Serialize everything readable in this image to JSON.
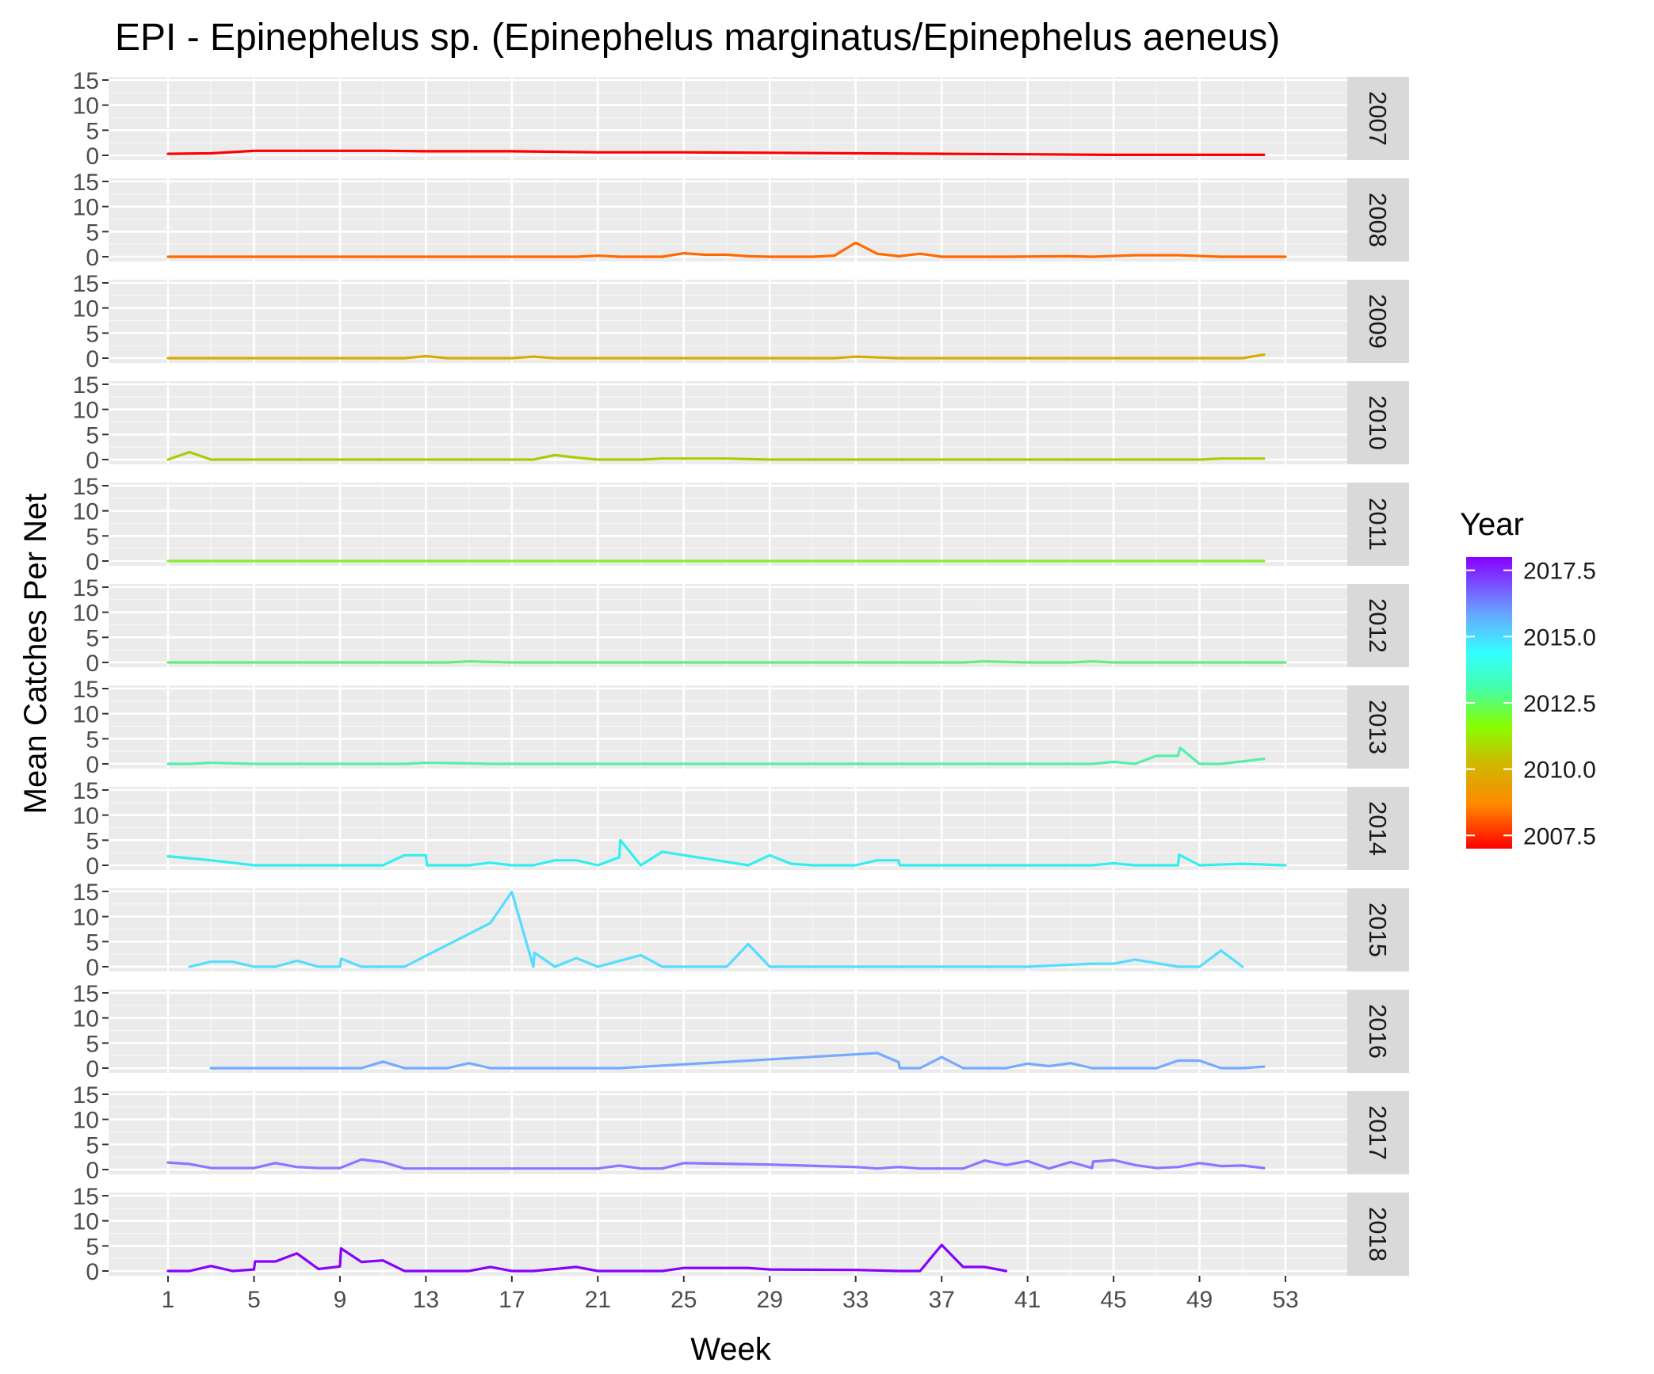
{
  "chart_data": {
    "type": "line",
    "title": "EPI - Epinephelus sp. (Epinephelus marginatus/Epinephelus aeneus)",
    "xlabel": "Week",
    "ylabel": "Mean Catches Per Net",
    "xlim": [
      1,
      53
    ],
    "ylim": [
      0,
      15
    ],
    "x_ticks": [
      1,
      5,
      9,
      13,
      17,
      21,
      25,
      29,
      33,
      37,
      41,
      45,
      49,
      53
    ],
    "y_ticks": [
      0,
      5,
      10,
      15
    ],
    "grid": true,
    "legend": {
      "title": "Year",
      "type": "colorbar",
      "position": "right",
      "labels": [
        "2017.5",
        "2015.0",
        "2012.5",
        "2010.0",
        "2007.5"
      ],
      "label_values": [
        2017.5,
        2015.0,
        2012.5,
        2010.0,
        2007.5
      ],
      "range": [
        2007,
        2018
      ]
    },
    "series": [
      {
        "name": "2007",
        "color": "#ff0000",
        "x": [
          1,
          3,
          5,
          7,
          9,
          11,
          13,
          17,
          21,
          25,
          29,
          33,
          37,
          41,
          45,
          49,
          52
        ],
        "y": [
          0.3,
          0.4,
          0.9,
          0.9,
          0.9,
          0.9,
          0.8,
          0.8,
          0.6,
          0.6,
          0.5,
          0.4,
          0.3,
          0.2,
          0.1,
          0.1,
          0.1
        ]
      },
      {
        "name": "2008",
        "color": "#ff6a00",
        "x": [
          1,
          5,
          10,
          15,
          20,
          21,
          22,
          24,
          25,
          26,
          27,
          28,
          29,
          31,
          32,
          33,
          34,
          35,
          36,
          37,
          40,
          43,
          44,
          46,
          48,
          50,
          53
        ],
        "y": [
          0,
          0,
          0,
          0,
          0,
          0.2,
          0,
          0,
          0.7,
          0.4,
          0.4,
          0.1,
          0,
          0,
          0.2,
          2.8,
          0.6,
          0.1,
          0.6,
          0,
          0,
          0.1,
          0,
          0.3,
          0.3,
          0,
          0
        ]
      },
      {
        "name": "2009",
        "color": "#ddaa00",
        "x": [
          1,
          5,
          9,
          12,
          13,
          14,
          17,
          18,
          19,
          21,
          25,
          29,
          32,
          33,
          35,
          37,
          41,
          45,
          49,
          51,
          52
        ],
        "y": [
          0,
          0,
          0,
          0,
          0.4,
          0,
          0,
          0.3,
          0,
          0,
          0,
          0,
          0,
          0.3,
          0,
          0,
          0,
          0,
          0,
          0,
          0.7
        ]
      },
      {
        "name": "2010",
        "color": "#aacc00",
        "x": [
          1,
          2,
          3,
          5,
          9,
          13,
          17,
          18,
          19,
          20,
          21,
          23,
          24,
          27,
          29,
          33,
          37,
          41,
          45,
          49,
          50,
          52
        ],
        "y": [
          0,
          1.5,
          0,
          0,
          0,
          0,
          0,
          0,
          0.9,
          0.4,
          0,
          0,
          0.2,
          0.2,
          0,
          0,
          0,
          0,
          0,
          0,
          0.2,
          0.2
        ]
      },
      {
        "name": "2011",
        "color": "#88ee33",
        "x": [
          1,
          5,
          9,
          13,
          17,
          21,
          25,
          29,
          33,
          37,
          41,
          45,
          49,
          52
        ],
        "y": [
          0,
          0,
          0,
          0,
          0,
          0,
          0,
          0,
          0,
          0,
          0,
          0,
          0,
          0
        ]
      },
      {
        "name": "2012",
        "color": "#66ee77",
        "x": [
          1,
          5,
          9,
          14,
          15,
          17,
          21,
          25,
          29,
          33,
          38,
          39,
          41,
          43,
          44,
          45,
          49,
          53
        ],
        "y": [
          0,
          0,
          0,
          0,
          0.2,
          0,
          0,
          0,
          0,
          0,
          0,
          0.2,
          0,
          0,
          0.2,
          0,
          0,
          0
        ]
      },
      {
        "name": "2013",
        "color": "#55eeaa",
        "x": [
          1,
          2,
          3,
          5,
          9,
          12,
          13,
          15,
          16,
          21,
          25,
          29,
          33,
          37,
          41,
          44,
          45,
          46,
          47,
          48,
          48.1,
          49,
          50,
          51,
          52
        ],
        "y": [
          0,
          0,
          0.2,
          0,
          0,
          0,
          0.2,
          0.1,
          0,
          0,
          0,
          0,
          0,
          0,
          0,
          0,
          0.4,
          0,
          1.6,
          1.6,
          3.2,
          0,
          0,
          0.5,
          1.0
        ]
      },
      {
        "name": "2014",
        "color": "#33eeee",
        "x": [
          1,
          3,
          5,
          9,
          11,
          12,
          13,
          13.05,
          15,
          16,
          17,
          18,
          19,
          20,
          21,
          22,
          22.05,
          23,
          24,
          28,
          29,
          30,
          31,
          33,
          34,
          35,
          35.05,
          37,
          41,
          44,
          45,
          46,
          47,
          48,
          48.05,
          49,
          51,
          53
        ],
        "y": [
          1.8,
          1.0,
          0,
          0,
          0,
          2.0,
          2.0,
          0,
          0,
          0.5,
          0,
          0,
          1.0,
          1.0,
          0,
          1.6,
          5.0,
          0,
          2.7,
          0,
          2.0,
          0.3,
          0,
          0,
          1.0,
          1.0,
          0,
          0,
          0,
          0,
          0.4,
          0,
          0,
          0,
          2.1,
          0,
          0.3,
          0
        ]
      },
      {
        "name": "2015",
        "color": "#55ddff",
        "x": [
          2,
          3,
          4,
          5,
          6,
          7,
          8,
          9,
          9.05,
          10,
          11,
          12,
          16,
          17,
          18,
          18.05,
          19,
          20,
          21,
          23,
          24,
          27,
          28,
          29,
          33,
          37,
          41,
          44,
          44.05,
          45,
          46,
          48,
          49,
          50,
          51
        ],
        "y": [
          0,
          1.0,
          1.0,
          0,
          0,
          1.2,
          0,
          0,
          1.6,
          0,
          0,
          0,
          8.7,
          14.9,
          0,
          2.8,
          0,
          1.7,
          0,
          2.3,
          0,
          0,
          4.5,
          0,
          0,
          0,
          0,
          0.6,
          0.6,
          0.6,
          1.4,
          0,
          0,
          3.2,
          0
        ]
      },
      {
        "name": "2016",
        "color": "#77aaff",
        "x": [
          3,
          5,
          9,
          10,
          11,
          12,
          13,
          14,
          15,
          16,
          17,
          21,
          22,
          34,
          35,
          35.05,
          36,
          37,
          38,
          40,
          41,
          42,
          43,
          44,
          45,
          47,
          48,
          49,
          50,
          51,
          52
        ],
        "y": [
          0,
          0,
          0,
          0,
          1.3,
          0,
          0,
          0,
          1.0,
          0,
          0,
          0,
          0,
          3.0,
          1.2,
          0,
          0,
          2.2,
          0,
          0,
          0.9,
          0.4,
          1.0,
          0,
          0,
          0,
          1.5,
          1.5,
          0,
          0,
          0.3
        ]
      },
      {
        "name": "2017",
        "color": "#8877ff",
        "x": [
          1,
          2,
          3,
          5,
          6,
          7,
          8,
          9,
          10,
          11,
          12,
          13,
          17,
          21,
          22,
          23,
          24,
          25,
          29,
          33,
          34,
          35,
          36,
          37,
          38,
          39,
          40,
          41,
          42,
          43,
          44,
          44.05,
          45,
          46,
          47,
          48,
          49,
          50,
          51,
          52
        ],
        "y": [
          1.4,
          1.1,
          0.3,
          0.3,
          1.3,
          0.5,
          0.3,
          0.3,
          2.0,
          1.5,
          0.2,
          0.2,
          0.2,
          0.2,
          0.8,
          0.2,
          0.2,
          1.3,
          1.0,
          0.5,
          0.2,
          0.5,
          0.2,
          0.2,
          0.2,
          1.8,
          0.9,
          1.7,
          0.2,
          1.5,
          0.3,
          1.6,
          1.9,
          0.9,
          0.3,
          0.5,
          1.3,
          0.7,
          0.8,
          0.3
        ]
      },
      {
        "name": "2018",
        "color": "#8800ff",
        "x": [
          1,
          2,
          3,
          4,
          5,
          5.05,
          6,
          7,
          8,
          9,
          9.05,
          10,
          11,
          12,
          13,
          15,
          16,
          17,
          18,
          19,
          20,
          21,
          24,
          25,
          28,
          29,
          33,
          35,
          36,
          37,
          38,
          39,
          40
        ],
        "y": [
          0,
          0,
          1.0,
          0,
          0.3,
          1.9,
          1.9,
          3.5,
          0.4,
          0.9,
          4.5,
          1.8,
          2.1,
          0,
          0,
          0,
          0.8,
          0,
          0,
          0.4,
          0.8,
          0,
          0,
          0.6,
          0.6,
          0.3,
          0.2,
          0,
          0,
          5.2,
          0.8,
          0.8,
          0
        ]
      }
    ]
  }
}
